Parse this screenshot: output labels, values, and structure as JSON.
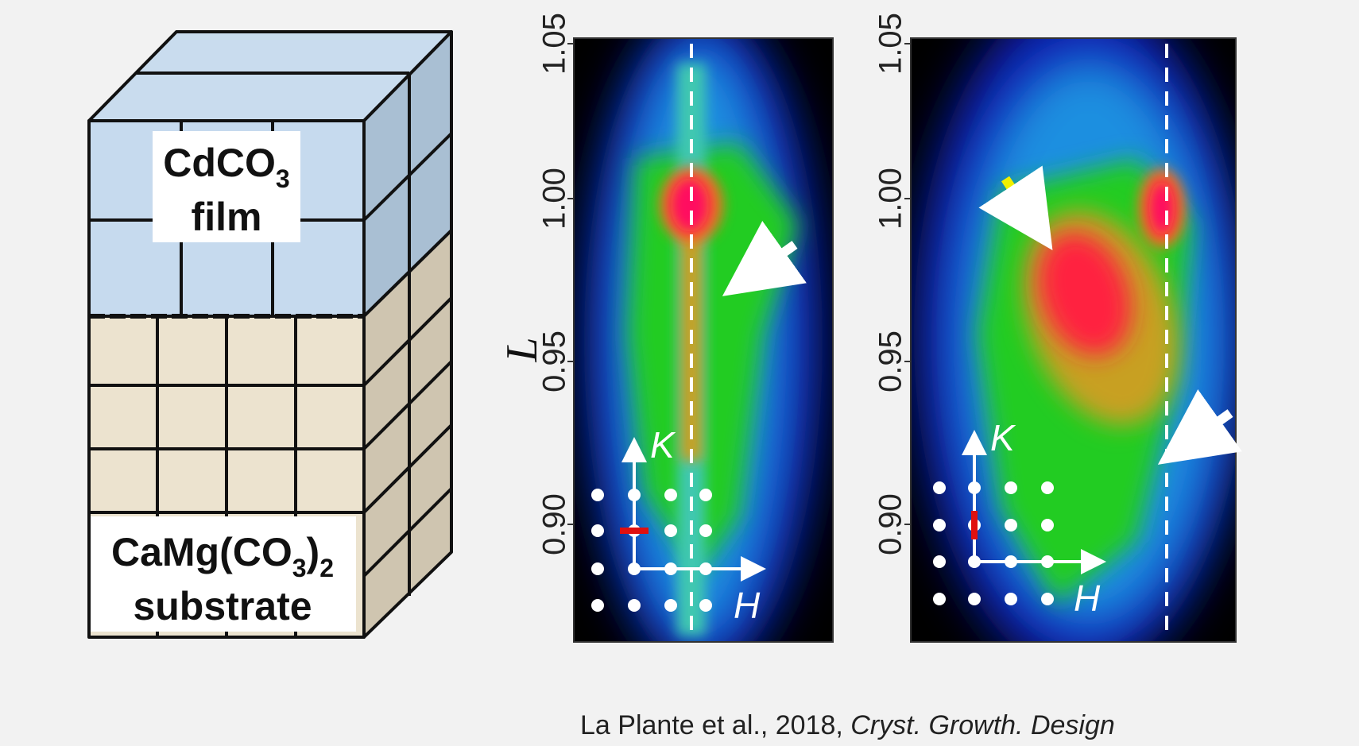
{
  "diagram": {
    "film_label": "CdCO",
    "film_subscript": "3",
    "film_line2": "film",
    "substrate_label": "CaMg(CO",
    "substrate_sub1": "3",
    "substrate_paren": ")",
    "substrate_sub2": "2",
    "substrate_line2": "substrate"
  },
  "y_axis_label": "L",
  "panels": [
    {
      "yticks": [
        "1.05",
        "1.00",
        "0.95",
        "0.90"
      ],
      "k_label": "K",
      "h_label": "H"
    },
    {
      "yticks": [
        "1.05",
        "1.00",
        "0.95",
        "0.90"
      ],
      "k_label": "K",
      "h_label": "H"
    }
  ],
  "citation": {
    "authors": "La Plante et al., 2018, ",
    "journal": "Cryst. Growth. Design"
  }
}
